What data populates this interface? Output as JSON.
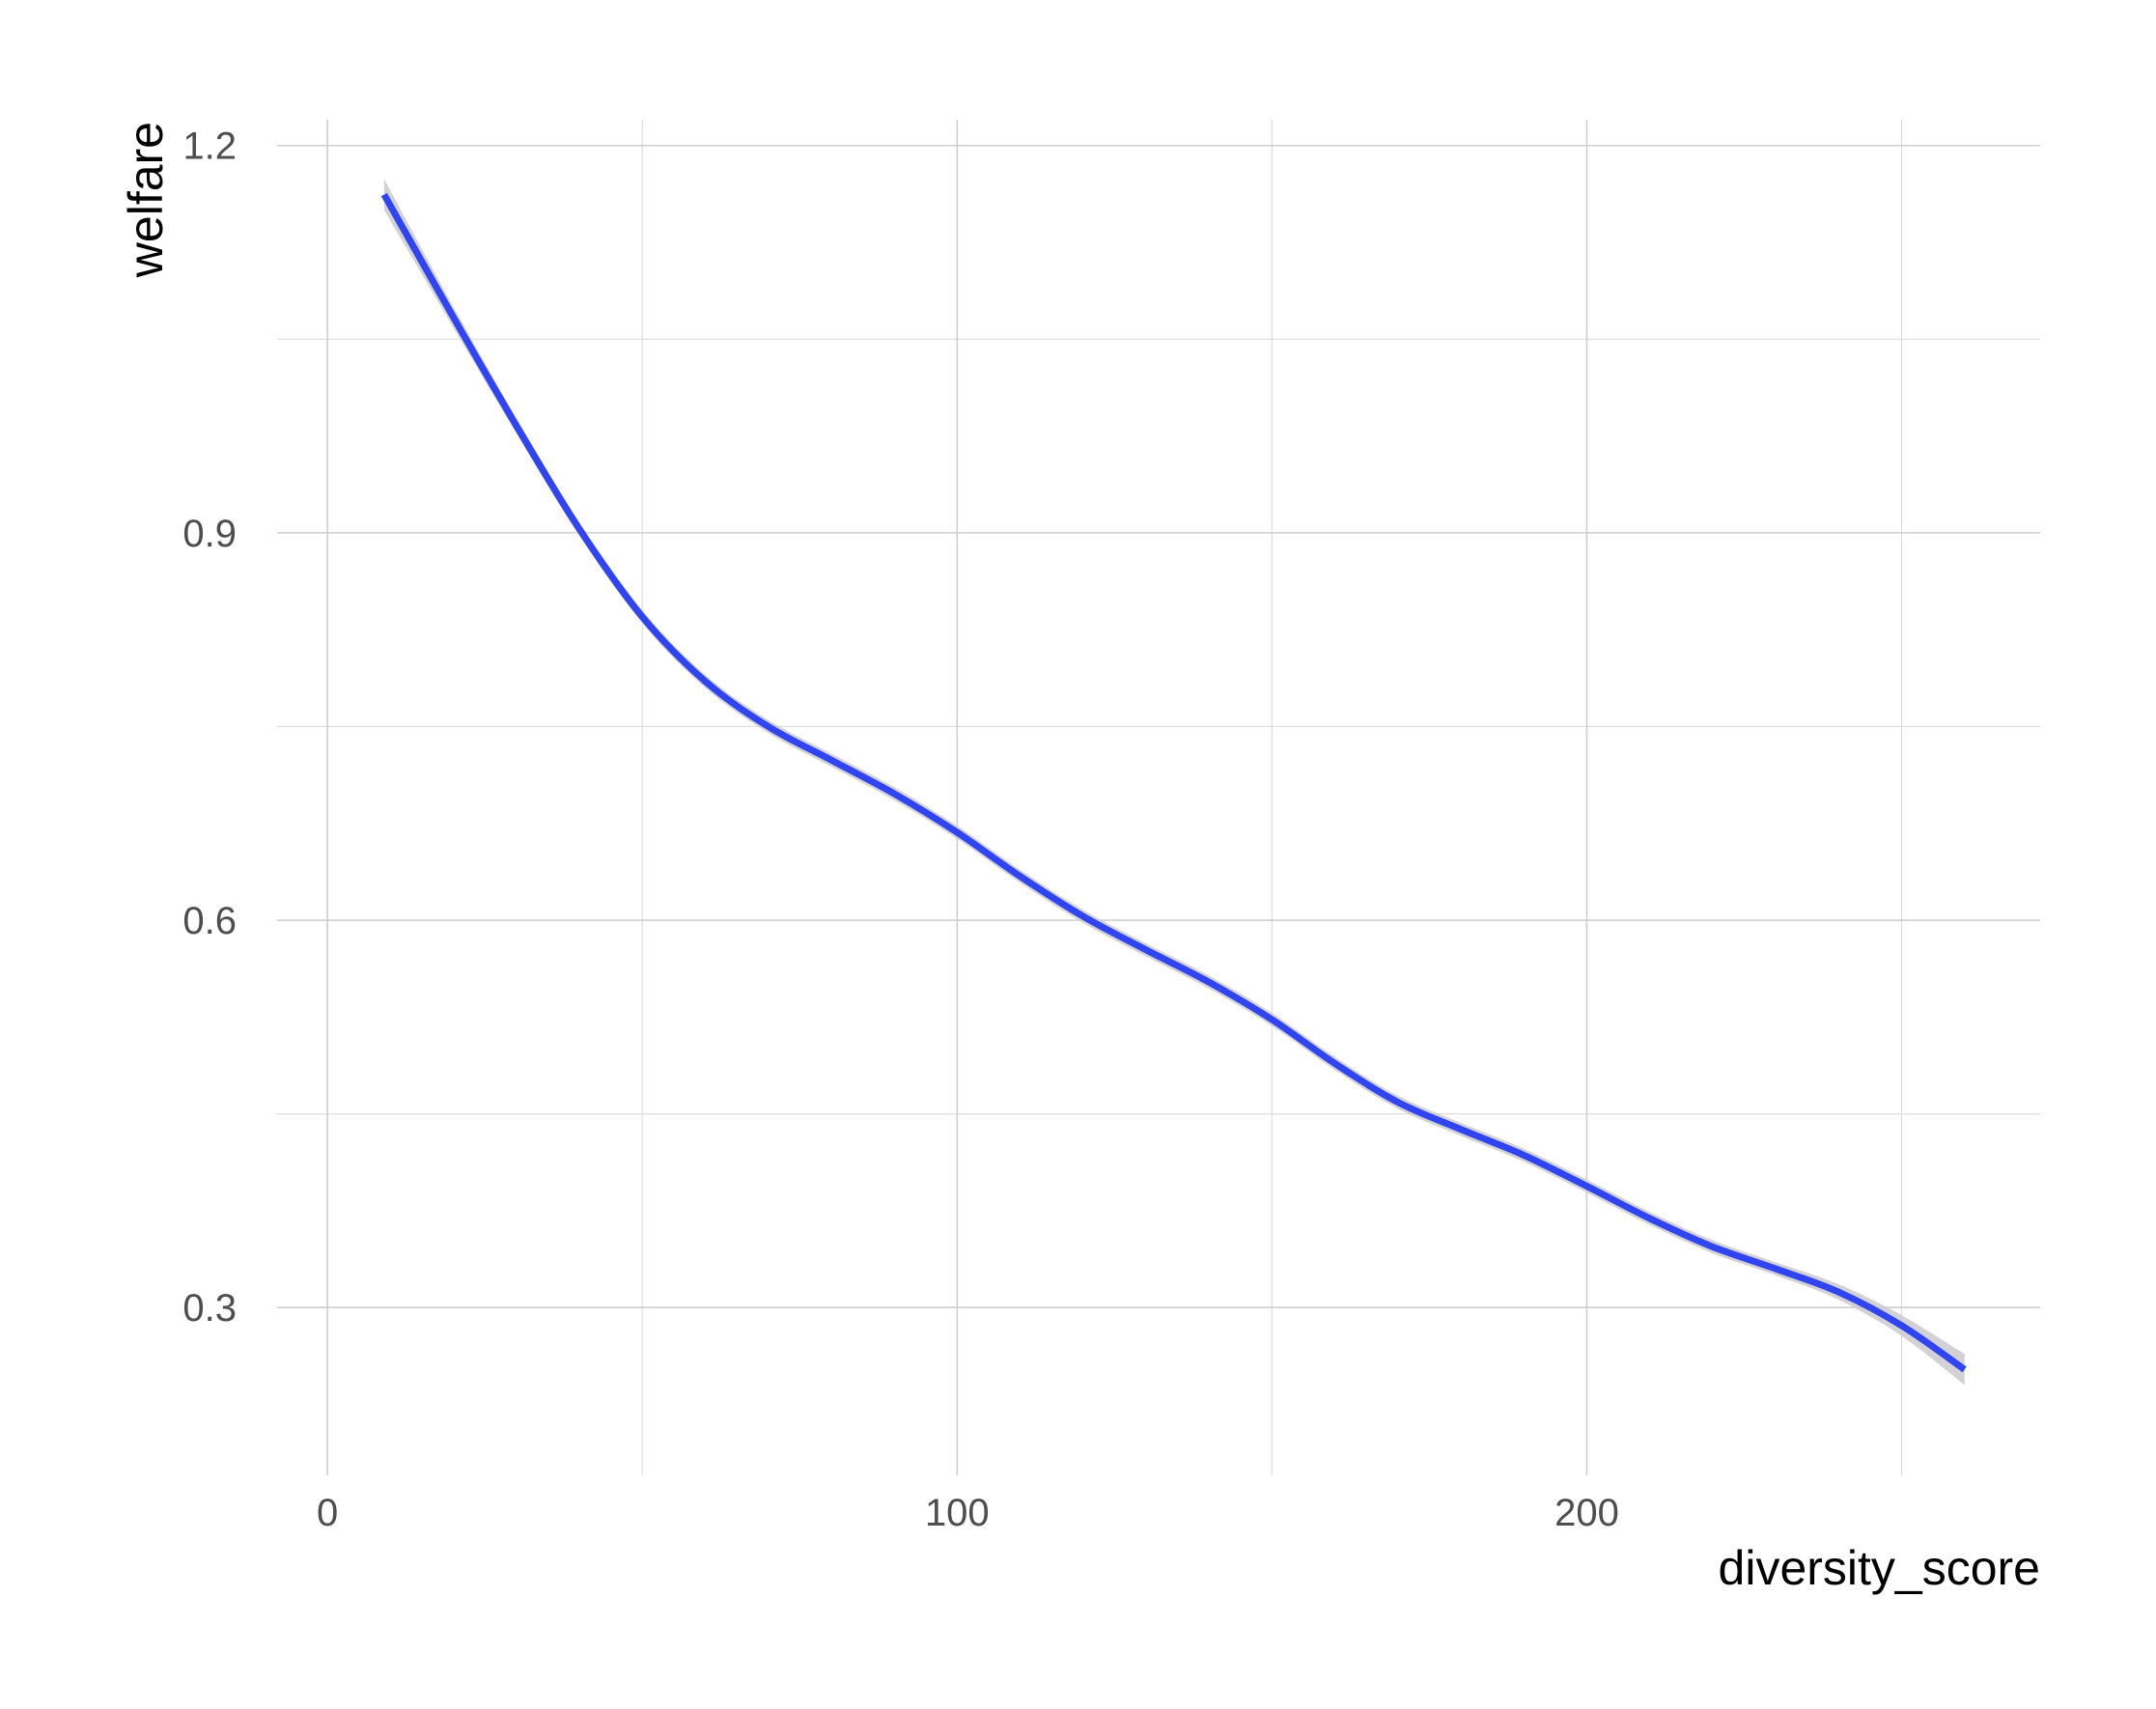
{
  "chart_data": {
    "type": "line",
    "title": "",
    "xlabel": "diversity_score",
    "ylabel": "welfare",
    "xlim": [
      -8,
      272
    ],
    "ylim": [
      0.17,
      1.22
    ],
    "x_ticks": [
      0,
      100,
      200
    ],
    "x_tick_labels": [
      "0",
      "100",
      "200"
    ],
    "y_ticks": [
      0.3,
      0.6,
      0.9,
      1.2
    ],
    "y_tick_labels": [
      "0.3",
      "0.6",
      "0.9",
      "1.2"
    ],
    "x_minor": [
      50,
      150,
      250
    ],
    "y_minor": [
      0.45,
      0.75,
      1.05
    ],
    "grid": true,
    "legend": "none",
    "series": [
      {
        "color": "#3044f0",
        "band_color": "#c9c9cf",
        "x": [
          9,
          20,
          30,
          40,
          50,
          60,
          70,
          80,
          90,
          100,
          110,
          120,
          130,
          140,
          150,
          160,
          170,
          180,
          190,
          200,
          210,
          220,
          230,
          240,
          250,
          260
        ],
        "y": [
          1.162,
          1.067,
          0.983,
          0.903,
          0.835,
          0.785,
          0.75,
          0.724,
          0.698,
          0.668,
          0.634,
          0.603,
          0.577,
          0.552,
          0.523,
          0.489,
          0.459,
          0.438,
          0.418,
          0.394,
          0.369,
          0.347,
          0.33,
          0.312,
          0.286,
          0.252
        ],
        "ci_halfwidth": [
          0.012,
          0.008,
          0.006,
          0.005,
          0.005,
          0.005,
          0.005,
          0.005,
          0.005,
          0.005,
          0.005,
          0.005,
          0.005,
          0.005,
          0.005,
          0.005,
          0.005,
          0.005,
          0.005,
          0.005,
          0.005,
          0.005,
          0.005,
          0.006,
          0.008,
          0.012
        ]
      }
    ]
  }
}
